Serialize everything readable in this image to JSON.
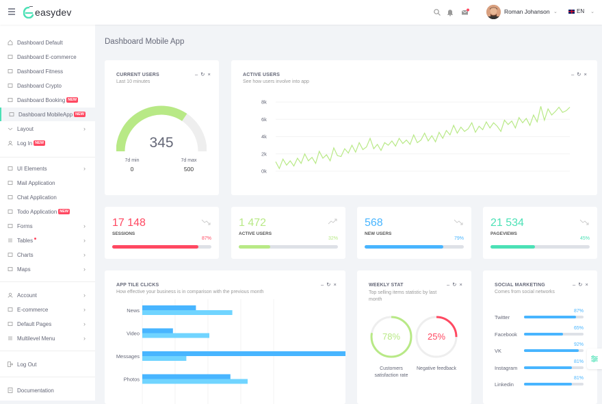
{
  "app": {
    "logo_text": "easydev"
  },
  "topbar": {
    "user_name": "Roman Johanson",
    "lang": "EN"
  },
  "sidebar": {
    "group1": [
      {
        "label": "Dashboard Default"
      },
      {
        "label": "Dashboard E-commerce"
      },
      {
        "label": "Dashboard Fitness"
      },
      {
        "label": "Dashboard Crypto"
      },
      {
        "label": "Dashboard Booking",
        "badge": "NEW"
      },
      {
        "label": "Dashboard MobileApp",
        "badge": "NEW",
        "active": true
      },
      {
        "label": "Layout"
      },
      {
        "label": "Log In",
        "badge": "NEW"
      }
    ],
    "group2": [
      {
        "label": "UI Elements"
      },
      {
        "label": "Mail Application"
      },
      {
        "label": "Chat Application"
      },
      {
        "label": "Todo Application",
        "badge": "NEW"
      },
      {
        "label": "Forms"
      },
      {
        "label": "Tables"
      },
      {
        "label": "Charts"
      },
      {
        "label": "Maps"
      }
    ],
    "group3": [
      {
        "label": "Account"
      },
      {
        "label": "E-commerce"
      },
      {
        "label": "Default Pages"
      },
      {
        "label": "Multilevel Menu"
      }
    ],
    "logout": "Log Out",
    "documentation": "Documentation"
  },
  "page": {
    "title": "Dashboard Mobile App"
  },
  "current_users": {
    "title": "CURRENT USERS",
    "subtitle": "Last 10 minutes",
    "value": "345",
    "fill_fraction": 0.69,
    "min_label": "7d min",
    "min_value": "0",
    "max_label": "7d max",
    "max_value": "500"
  },
  "active_users": {
    "title": "ACTIVE USERS",
    "subtitle": "See how users involve into app"
  },
  "stats": [
    {
      "value": "17 148",
      "label": "SESSIONS",
      "pct": "87%",
      "fraction": 0.87,
      "color": "#ff4861",
      "trend": "down"
    },
    {
      "value": "1 472",
      "label": "ACTIVE USERS",
      "pct": "32%",
      "fraction": 0.32,
      "color": "#b8e986",
      "trend": "up"
    },
    {
      "value": "568",
      "label": "NEW USERS",
      "pct": "79%",
      "fraction": 0.79,
      "color": "#48b5ff",
      "trend": "down"
    },
    {
      "value": "21 534",
      "label": "PAGEVIEWS",
      "pct": "45%",
      "fraction": 0.45,
      "color": "#4ce1b6",
      "trend": "down"
    }
  ],
  "app_tile_clicks": {
    "title": "APP TILE CLICKS",
    "subtitle": "How effective your business is in comparison with the previous month"
  },
  "weekly_stat": {
    "title": "WEEKLY STAT",
    "subtitle": "Top selling items statistic by last month",
    "items": [
      {
        "value": "78%",
        "fraction": 0.78,
        "label": "Customers satisfaction rate",
        "color": "#b8e986"
      },
      {
        "value": "25%",
        "fraction": 0.25,
        "label": "Negative feedback",
        "color": "#ff4861"
      }
    ]
  },
  "social_marketing": {
    "title": "SOCIAL MARKETING",
    "subtitle": "Comes from social networks",
    "items": [
      {
        "name": "Twitter",
        "pct": "87%",
        "fraction": 0.87
      },
      {
        "name": "Facebook",
        "pct": "65%",
        "fraction": 0.65
      },
      {
        "name": "VK",
        "pct": "92%",
        "fraction": 0.92
      },
      {
        "name": "Instagram",
        "pct": "81%",
        "fraction": 0.81
      },
      {
        "name": "Linkedin",
        "pct": "81%",
        "fraction": 0.81
      }
    ]
  },
  "colors": {
    "accent": "#4ce1b6",
    "red": "#ff4861",
    "green": "#b8e986",
    "blue": "#48b5ff",
    "light_blue": "#70d4ff"
  },
  "chart_data": [
    {
      "type": "line",
      "title": "ACTIVE USERS",
      "y_ticks": [
        "8k",
        "6k",
        "4k",
        "2k",
        "0k"
      ],
      "ylim": [
        0,
        8000
      ],
      "series": [
        {
          "values": [
            1100,
            300,
            1400,
            700,
            1200,
            600,
            1500,
            900,
            2000,
            1200,
            1600,
            900,
            2300,
            1500,
            1900,
            1200,
            2700,
            1800,
            1700,
            2600,
            2100,
            3000,
            2200,
            3300,
            2500,
            2800,
            3800,
            2600,
            3100,
            2400,
            3300,
            3000,
            3500,
            2900,
            3800,
            3200,
            3600,
            3100,
            4200,
            3300,
            3600,
            4400,
            3500,
            4100,
            3400,
            4500,
            3800,
            4700,
            4200,
            5300,
            4400,
            5100,
            4600,
            4900,
            5600,
            4500,
            5200,
            4800,
            5700,
            5000,
            5600,
            5200,
            4600,
            5900,
            5400,
            5800,
            5000,
            6200,
            5600,
            6100,
            5300,
            6500,
            5700,
            7500,
            5900,
            7200,
            6500,
            6900,
            7400,
            6800,
            7000,
            7400
          ]
        }
      ]
    },
    {
      "type": "bar",
      "title": "APP TILE CLICKS",
      "categories": [
        "News",
        "Video",
        "Messages",
        "Photos"
      ],
      "series": [
        {
          "values": [
            28,
            16,
            115,
            46
          ]
        },
        {
          "values": [
            47,
            35,
            23,
            55
          ]
        }
      ]
    }
  ]
}
